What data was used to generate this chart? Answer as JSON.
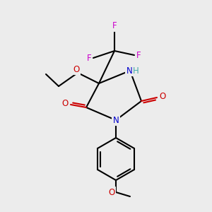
{
  "background_color": "#ececec",
  "fig_width": 3.0,
  "fig_height": 3.0,
  "dpi": 100,
  "atom_colors": {
    "C": "#000000",
    "N": "#0000cc",
    "NH": "#44aaaa",
    "O": "#cc0000",
    "F": "#cc00cc",
    "H": "#44aaaa",
    "black": "#000000"
  },
  "bond_lw": 1.5,
  "font_size": 8.5
}
